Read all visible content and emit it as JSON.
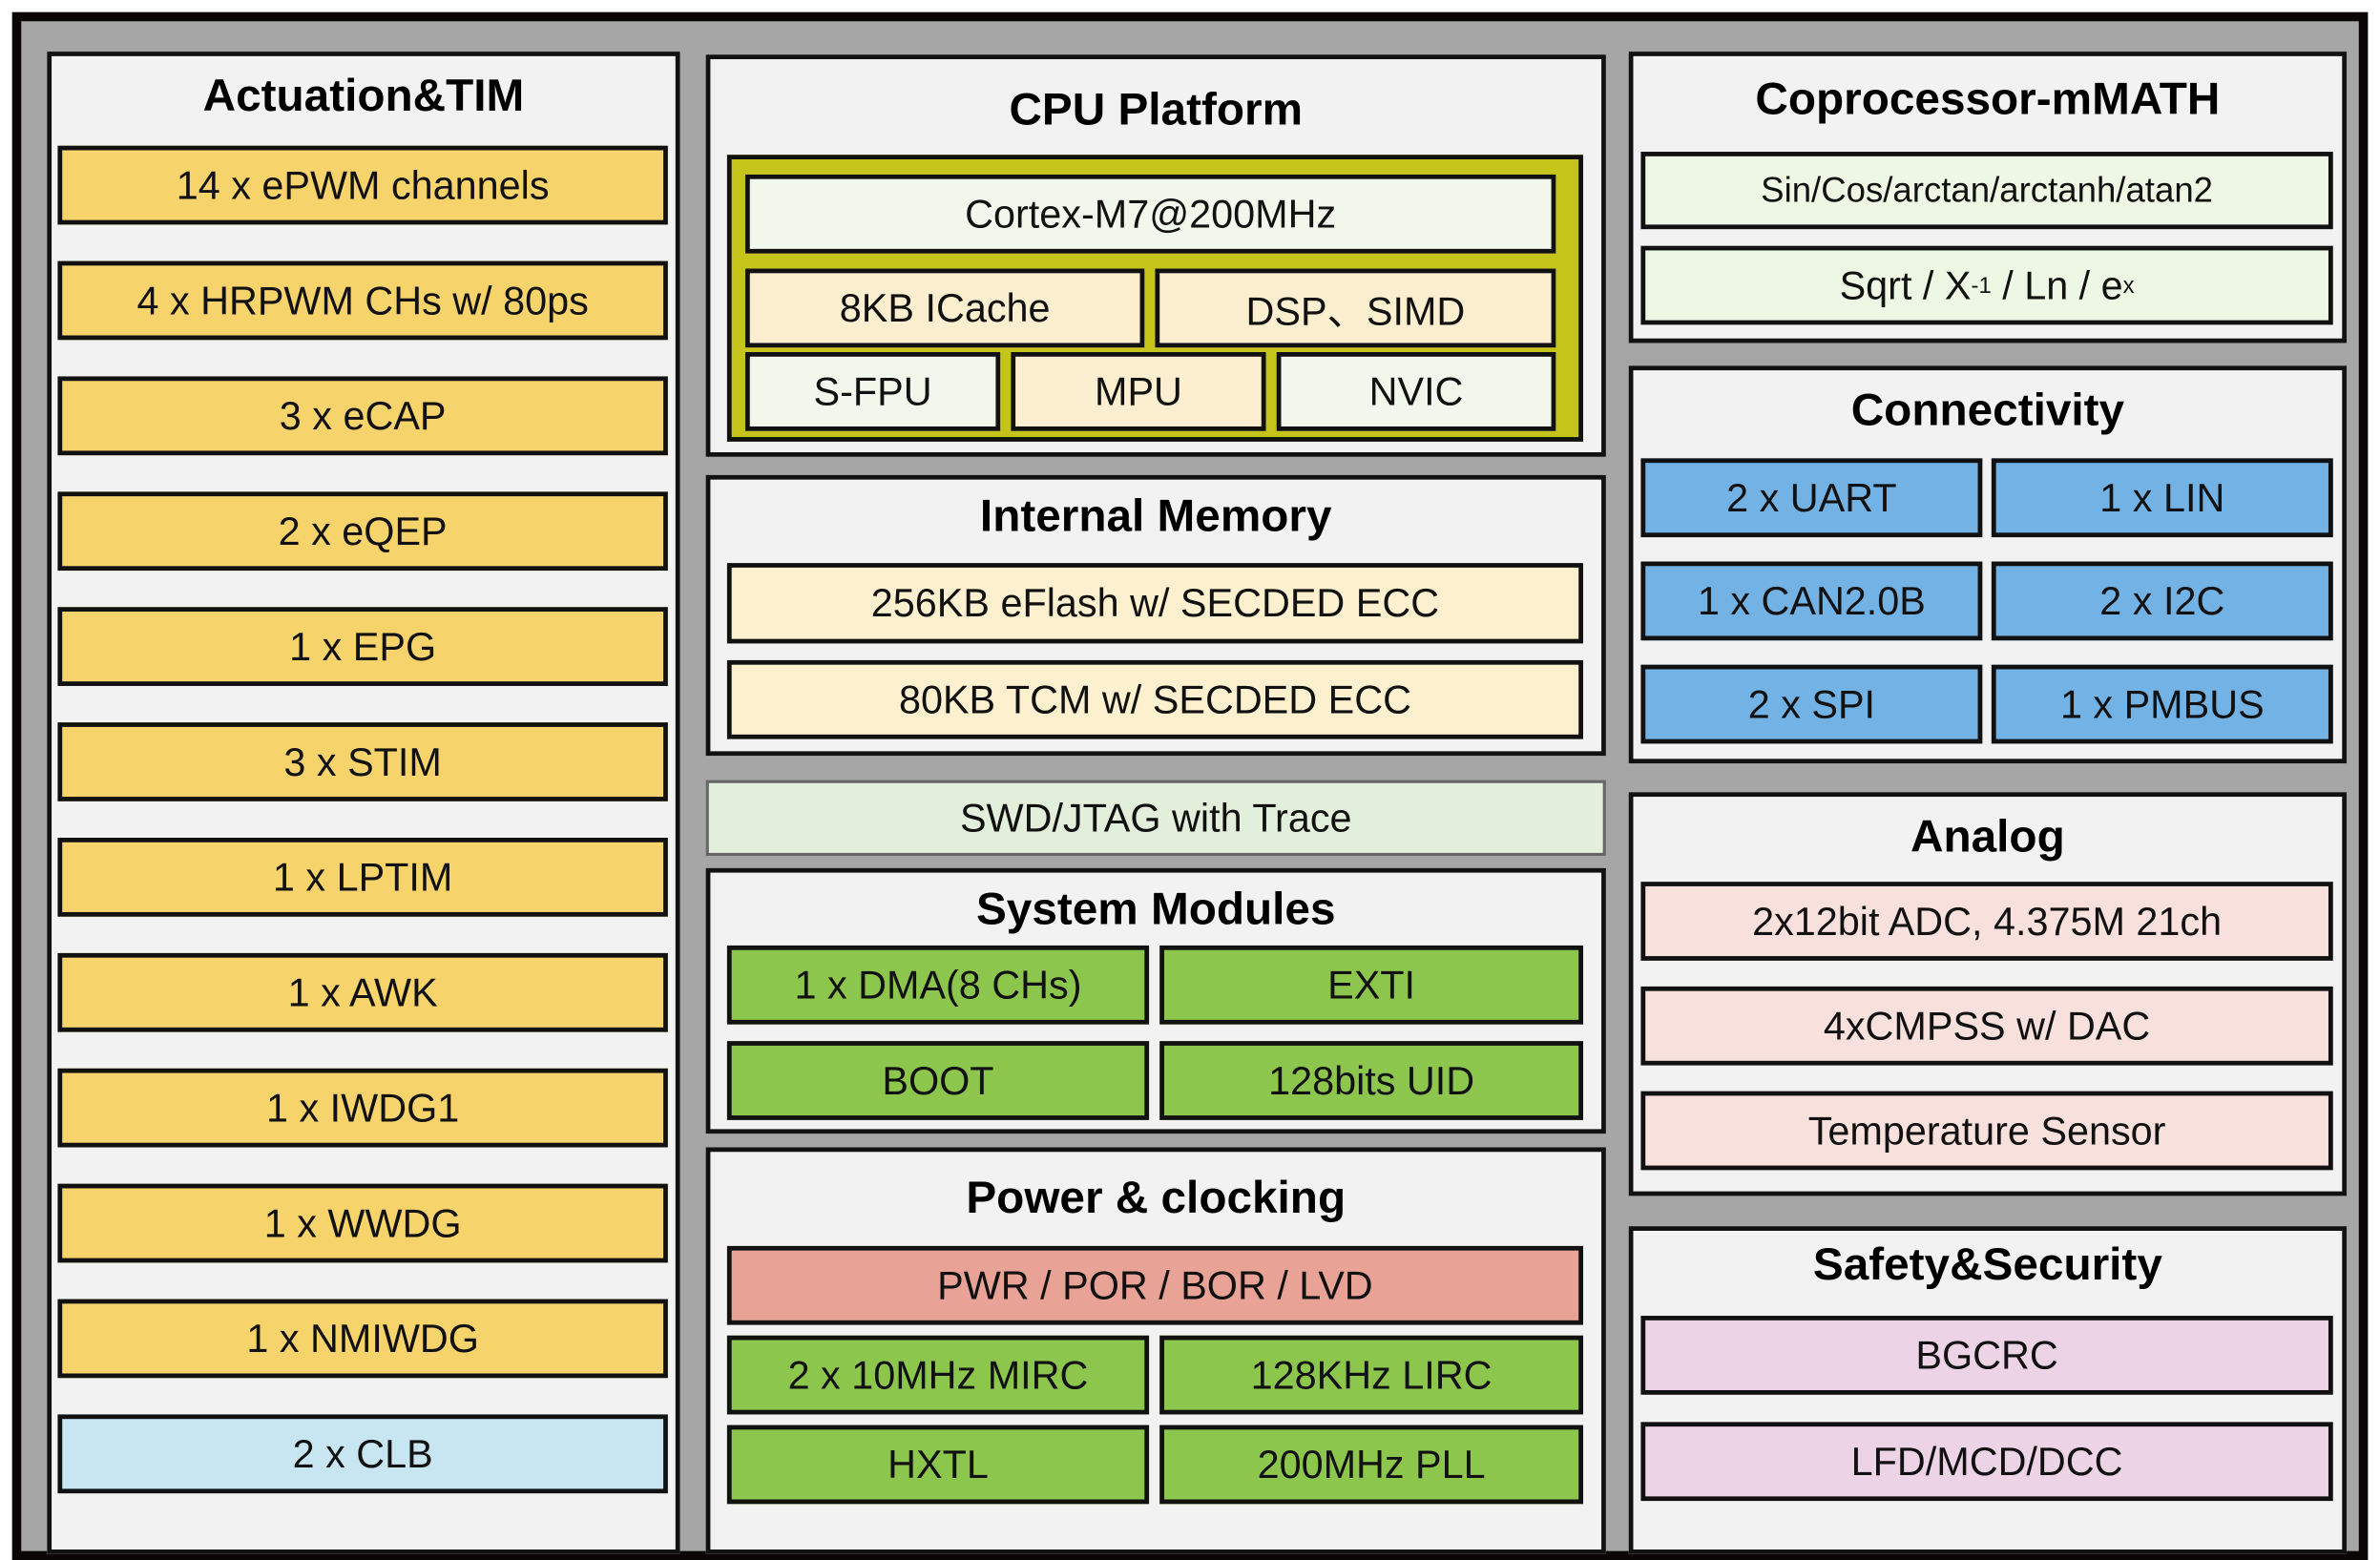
{
  "colors": {
    "frame": "#0a0606",
    "background": "#a6a6a6",
    "panel": "#f2f2f2",
    "actuation": "#f7d36b",
    "clb": "#c8e6f2",
    "cpu_core": "#f2f7ec",
    "cpu_olive": "#c5c41a",
    "cache": "#fcefcf",
    "memory": "#fcf0cf",
    "system_green": "#8dc64d",
    "power_red": "#e8a296",
    "debug": "#e2efda",
    "math": "#eef6e4",
    "connectivity": "#72b2e4",
    "analog": "#f8e0dc",
    "safety": "#ecd3e6"
  },
  "actuation": {
    "title": "Actuation&TIM",
    "items": [
      "14 x ePWM channels",
      "4 x HRPWM CHs w/ 80ps",
      "3 x eCAP",
      "2 x eQEP",
      "1 x EPG",
      "3 x STIM",
      "1 x LPTIM",
      "1 x AWK",
      "1 x IWDG1",
      "1 x WWDG",
      "1 x NMIWDG",
      "2 x CLB"
    ]
  },
  "cpu": {
    "title": "CPU Platform",
    "core": "Cortex-M7@200MHz",
    "icache": "8KB ICache",
    "dsp": "DSP、SIMD",
    "sfpu": "S-FPU",
    "mpu": "MPU",
    "nvic": "NVIC"
  },
  "memory": {
    "title": "Internal Memory",
    "items": [
      "256KB eFlash w/ SECDED ECC",
      "80KB TCM w/ SECDED ECC"
    ]
  },
  "debug": "SWD/JTAG with Trace",
  "system": {
    "title": "System Modules",
    "items": [
      "1 x DMA(8 CHs)",
      "EXTI",
      "BOOT",
      "128bits UID"
    ]
  },
  "power": {
    "title": "Power & clocking",
    "pwr": "PWR / POR / BOR / LVD",
    "items": [
      "2 x 10MHz MIRC",
      "128KHz LIRC",
      "HXTL",
      "200MHz PLL"
    ]
  },
  "coprocessor": {
    "title": "Coprocessor-mMATH",
    "trig": "Sin/Cos/arctan/arctanh/atan2",
    "math_a": "Sqrt / X",
    "math_sup1": "-1",
    "math_b": " / Ln / e",
    "math_sup2": "x"
  },
  "connectivity": {
    "title": "Connectivity",
    "items": [
      "2 x UART",
      "1 x LIN",
      "1 x CAN2.0B",
      "2 x I2C",
      "2 x SPI",
      "1 x PMBUS"
    ]
  },
  "analog": {
    "title": "Analog",
    "items": [
      "2x12bit ADC, 4.375M 21ch",
      "4xCMPSS w/ DAC",
      "Temperature Sensor"
    ]
  },
  "safety": {
    "title": "Safety&Security",
    "items": [
      "BGCRC",
      "LFD/MCD/DCC"
    ]
  }
}
